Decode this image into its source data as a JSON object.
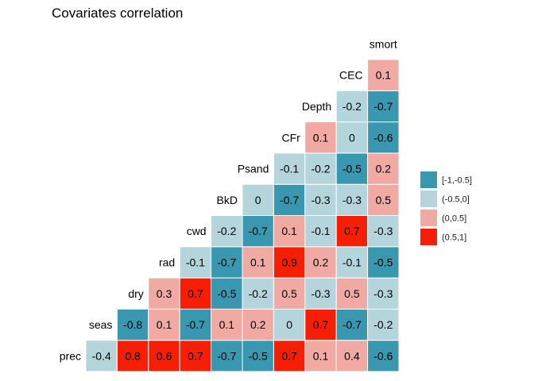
{
  "chart_data": {
    "type": "heatmap",
    "title": "Covariates correlation",
    "variables": [
      "prec",
      "seas",
      "dry",
      "rad",
      "cwd",
      "BkD",
      "Psand",
      "CFr",
      "Depth",
      "CEC",
      "smort"
    ],
    "matrix": [
      [
        -0.4
      ],
      [
        0.8,
        -0.8
      ],
      [
        0.6,
        0.1,
        0.3
      ],
      [
        0.7,
        -0.7,
        0.7,
        -0.1
      ],
      [
        -0.7,
        0.1,
        -0.5,
        -0.7,
        -0.2
      ],
      [
        -0.5,
        0.2,
        -0.2,
        0.1,
        -0.7,
        0
      ],
      [
        0.7,
        0,
        0.5,
        0.9,
        0.1,
        -0.7,
        -0.1
      ],
      [
        0.1,
        0.7,
        -0.3,
        0.2,
        -0.1,
        -0.3,
        -0.2,
        0.1
      ],
      [
        0.4,
        -0.7,
        0.5,
        -0.1,
        0.7,
        -0.3,
        -0.5,
        0,
        -0.2
      ],
      [
        -0.6,
        -0.2,
        -0.3,
        -0.5,
        -0.3,
        0.5,
        0.2,
        -0.6,
        -0.7,
        0.1
      ]
    ],
    "legend": {
      "placement": "right",
      "entries": [
        {
          "label": "[-1,-0.5]",
          "color": "#3a97b0"
        },
        {
          "label": "(-0.5,0]",
          "color": "#b5d5dd"
        },
        {
          "label": "(0,0.5]",
          "color": "#f0a9a3"
        },
        {
          "label": "(0.5,1]",
          "color": "#f61e04"
        }
      ]
    },
    "grid": false
  }
}
